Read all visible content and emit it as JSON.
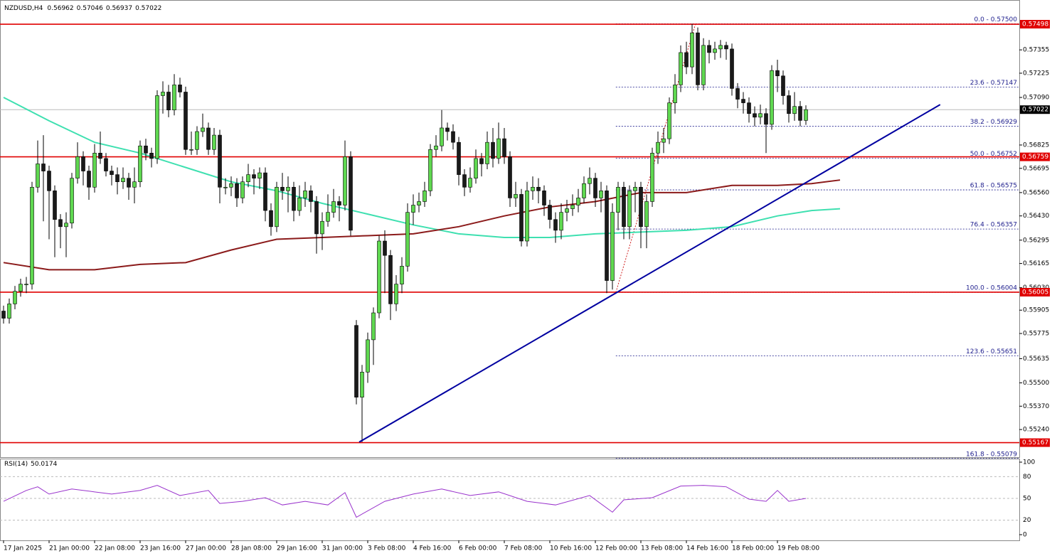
{
  "chart_data": {
    "type": "candlestick",
    "symbol": "NZDUSD,H4",
    "up_color": "#5fd850",
    "down_color": "#1a1a1a",
    "ylim": [
      0.55086,
      0.57613
    ],
    "yticks": [
      0.57355,
      0.57225,
      {
        "value": 0.5709,
        "label": "0.57090"
      },
      0.56825,
      0.56695,
      {
        "value": 0.5656,
        "label": "0.56560"
      },
      {
        "value": 0.5643,
        "label": "0.56430"
      },
      0.56295,
      0.56165,
      {
        "value": 0.5603,
        "label": "0.56030"
      },
      0.55905,
      0.55775,
      0.55635,
      {
        "value": 0.555,
        "label": "0.55500"
      },
      {
        "value": 0.5537,
        "label": "0.55370"
      },
      {
        "value": 0.5524,
        "label": "0.55240"
      }
    ],
    "xticks": [
      {
        "value": 0,
        "label": "17 Jan 2025"
      },
      {
        "value": 8,
        "label": "21 Jan 00:00"
      },
      {
        "value": 16,
        "label": "22 Jan 08:00"
      },
      {
        "value": 24,
        "label": "23 Jan 16:00"
      },
      {
        "value": 32,
        "label": "27 Jan 00:00"
      },
      {
        "value": 40,
        "label": "28 Jan 08:00"
      },
      {
        "value": 48,
        "label": "29 Jan 16:00"
      },
      {
        "value": 56,
        "label": "31 Jan 00:00"
      },
      {
        "value": 64,
        "label": "3 Feb 08:00"
      },
      {
        "value": 72,
        "label": "4 Feb 16:00"
      },
      {
        "value": 80,
        "label": "6 Feb 00:00"
      },
      {
        "value": 88,
        "label": "7 Feb 08:00"
      },
      {
        "value": 96,
        "label": "10 Feb 16:00"
      },
      {
        "value": 104,
        "label": "12 Feb 00:00"
      },
      {
        "value": 112,
        "label": "13 Feb 08:00"
      },
      {
        "value": 120,
        "label": "14 Feb 16:00"
      },
      {
        "value": 128,
        "label": "18 Feb 00:00"
      },
      {
        "value": 136,
        "label": "19 Feb 08:00"
      }
    ],
    "candles": [
      [
        0.559,
        0.5593,
        0.5583,
        0.5586
      ],
      [
        0.5586,
        0.5597,
        0.5583,
        0.5594
      ],
      [
        0.5594,
        0.5604,
        0.5591,
        0.5601
      ],
      [
        0.5601,
        0.5608,
        0.5598,
        0.5605
      ],
      [
        0.5605,
        0.5609,
        0.56,
        0.5605
      ],
      [
        0.5605,
        0.5662,
        0.5602,
        0.5659
      ],
      [
        0.5659,
        0.5685,
        0.5656,
        0.5672
      ],
      [
        0.5672,
        0.5688,
        0.564,
        0.5668
      ],
      [
        0.5668,
        0.5671,
        0.563,
        0.5657
      ],
      [
        0.5657,
        0.566,
        0.562,
        0.5641
      ],
      [
        0.5641,
        0.5644,
        0.5625,
        0.5637
      ],
      [
        0.5637,
        0.5645,
        0.562,
        0.5639
      ],
      [
        0.5639,
        0.5667,
        0.5636,
        0.5664
      ],
      [
        0.5664,
        0.5684,
        0.5661,
        0.5676
      ],
      [
        0.5676,
        0.5679,
        0.566,
        0.5668
      ],
      [
        0.5668,
        0.5671,
        0.5652,
        0.5659
      ],
      [
        0.5659,
        0.5683,
        0.5656,
        0.5678
      ],
      [
        0.5678,
        0.569,
        0.5672,
        0.5675
      ],
      [
        0.5675,
        0.5678,
        0.5665,
        0.5668
      ],
      [
        0.5668,
        0.5671,
        0.566,
        0.5666
      ],
      [
        0.5666,
        0.567,
        0.5655,
        0.5662
      ],
      [
        0.5662,
        0.567,
        0.5658,
        0.5664
      ],
      [
        0.5664,
        0.5667,
        0.5652,
        0.5659
      ],
      [
        0.5659,
        0.567,
        0.565,
        0.5662
      ],
      [
        0.5662,
        0.5685,
        0.5659,
        0.5682
      ],
      [
        0.5682,
        0.5686,
        0.5674,
        0.5678
      ],
      [
        0.5678,
        0.5681,
        0.567,
        0.5675
      ],
      [
        0.5675,
        0.5713,
        0.5672,
        0.571
      ],
      [
        0.571,
        0.5718,
        0.57,
        0.5712
      ],
      [
        0.5712,
        0.5716,
        0.5698,
        0.5702
      ],
      [
        0.5702,
        0.5722,
        0.5699,
        0.5716
      ],
      [
        0.5716,
        0.572,
        0.5709,
        0.5712
      ],
      [
        0.5712,
        0.5715,
        0.5677,
        0.568
      ],
      [
        0.568,
        0.569,
        0.5677,
        0.568
      ],
      [
        0.568,
        0.5693,
        0.5677,
        0.569
      ],
      [
        0.569,
        0.57,
        0.5687,
        0.5692
      ],
      [
        0.5692,
        0.5695,
        0.5677,
        0.568
      ],
      [
        0.568,
        0.5692,
        0.5677,
        0.5688
      ],
      [
        0.5688,
        0.5691,
        0.565,
        0.5659
      ],
      [
        0.5659,
        0.5664,
        0.5655,
        0.5659
      ],
      [
        0.5659,
        0.5665,
        0.5654,
        0.5661
      ],
      [
        0.5661,
        0.5664,
        0.5648,
        0.5653
      ],
      [
        0.5653,
        0.5665,
        0.565,
        0.5662
      ],
      [
        0.5662,
        0.5672,
        0.5659,
        0.5666
      ],
      [
        0.5666,
        0.5669,
        0.5655,
        0.5664
      ],
      [
        0.5664,
        0.567,
        0.5658,
        0.5667
      ],
      [
        0.5667,
        0.567,
        0.564,
        0.5646
      ],
      [
        0.5646,
        0.565,
        0.5632,
        0.5637
      ],
      [
        0.5637,
        0.5662,
        0.5634,
        0.5659
      ],
      [
        0.5659,
        0.5667,
        0.5652,
        0.5657
      ],
      [
        0.5657,
        0.5665,
        0.5645,
        0.5659
      ],
      [
        0.5659,
        0.5662,
        0.564,
        0.5646
      ],
      [
        0.5646,
        0.566,
        0.5643,
        0.5653
      ],
      [
        0.5653,
        0.5662,
        0.5648,
        0.5657
      ],
      [
        0.5657,
        0.566,
        0.5645,
        0.5651
      ],
      [
        0.5651,
        0.5654,
        0.5622,
        0.5633
      ],
      [
        0.5633,
        0.5645,
        0.5624,
        0.564
      ],
      [
        0.564,
        0.5655,
        0.5637,
        0.5645
      ],
      [
        0.5645,
        0.5658,
        0.5642,
        0.5651
      ],
      [
        0.5651,
        0.5654,
        0.564,
        0.5649
      ],
      [
        0.5649,
        0.5685,
        0.5646,
        0.5676
      ],
      [
        0.5676,
        0.5679,
        0.5632,
        0.5635
      ],
      [
        0.5582,
        0.5585,
        0.5538,
        0.5542
      ],
      [
        0.5542,
        0.556,
        0.5517,
        0.5556
      ],
      [
        0.5556,
        0.5578,
        0.555,
        0.5574
      ],
      [
        0.5574,
        0.5592,
        0.556,
        0.5589
      ],
      [
        0.5589,
        0.5632,
        0.5586,
        0.5629
      ],
      [
        0.5629,
        0.5635,
        0.56,
        0.5621
      ],
      [
        0.5621,
        0.5624,
        0.5585,
        0.5594
      ],
      [
        0.5594,
        0.561,
        0.559,
        0.5605
      ],
      [
        0.5605,
        0.562,
        0.56,
        0.5615
      ],
      [
        0.5615,
        0.565,
        0.5612,
        0.5645
      ],
      [
        0.5645,
        0.5655,
        0.5638,
        0.5649
      ],
      [
        0.5649,
        0.5656,
        0.5645,
        0.5651
      ],
      [
        0.5651,
        0.5662,
        0.5648,
        0.5657
      ],
      [
        0.5657,
        0.5683,
        0.5654,
        0.568
      ],
      [
        0.568,
        0.5688,
        0.5676,
        0.5682
      ],
      [
        0.5682,
        0.5702,
        0.5679,
        0.5692
      ],
      [
        0.5692,
        0.5695,
        0.5685,
        0.569
      ],
      [
        0.569,
        0.5694,
        0.568,
        0.5684
      ],
      [
        0.5684,
        0.5687,
        0.566,
        0.5666
      ],
      [
        0.5666,
        0.5669,
        0.5654,
        0.5659
      ],
      [
        0.5659,
        0.567,
        0.5656,
        0.5664
      ],
      [
        0.5664,
        0.568,
        0.5661,
        0.5675
      ],
      [
        0.5675,
        0.5678,
        0.5665,
        0.5672
      ],
      [
        0.5672,
        0.569,
        0.5669,
        0.5684
      ],
      [
        0.5684,
        0.5692,
        0.567,
        0.5675
      ],
      [
        0.5675,
        0.5695,
        0.5672,
        0.5686
      ],
      [
        0.5686,
        0.5692,
        0.5672,
        0.5676
      ],
      [
        0.5676,
        0.5679,
        0.5648,
        0.5653
      ],
      [
        0.5653,
        0.5662,
        0.5648,
        0.5655
      ],
      [
        0.5655,
        0.5658,
        0.5626,
        0.5629
      ],
      [
        0.5629,
        0.5662,
        0.5626,
        0.5657
      ],
      [
        0.5657,
        0.5665,
        0.5652,
        0.5659
      ],
      [
        0.5659,
        0.5664,
        0.565,
        0.5657
      ],
      [
        0.5657,
        0.566,
        0.5643,
        0.5649
      ],
      [
        0.5649,
        0.5652,
        0.5636,
        0.5641
      ],
      [
        0.5641,
        0.5645,
        0.5628,
        0.5635
      ],
      [
        0.5635,
        0.565,
        0.563,
        0.5645
      ],
      [
        0.5645,
        0.5652,
        0.564,
        0.5647
      ],
      [
        0.5647,
        0.5655,
        0.5643,
        0.5649
      ],
      [
        0.5649,
        0.5658,
        0.5645,
        0.5653
      ],
      [
        0.5653,
        0.5665,
        0.565,
        0.5661
      ],
      [
        0.5661,
        0.567,
        0.5655,
        0.5664
      ],
      [
        0.5664,
        0.5667,
        0.5648,
        0.5653
      ],
      [
        0.5653,
        0.5662,
        0.5645,
        0.5657
      ],
      [
        0.5657,
        0.566,
        0.56,
        0.5607
      ],
      [
        0.5607,
        0.565,
        0.5602,
        0.5645
      ],
      [
        0.5645,
        0.5662,
        0.5635,
        0.5659
      ],
      [
        0.5659,
        0.5662,
        0.563,
        0.5637
      ],
      [
        0.5637,
        0.566,
        0.563,
        0.5657
      ],
      [
        0.5657,
        0.5662,
        0.5645,
        0.5659
      ],
      [
        0.5659,
        0.5662,
        0.5625,
        0.5637
      ],
      [
        0.5637,
        0.5655,
        0.5625,
        0.5651
      ],
      [
        0.5651,
        0.5681,
        0.5648,
        0.5678
      ],
      [
        0.5678,
        0.569,
        0.5672,
        0.5684
      ],
      [
        0.5684,
        0.5692,
        0.5678,
        0.5686
      ],
      [
        0.5686,
        0.5709,
        0.5683,
        0.5706
      ],
      [
        0.5706,
        0.5722,
        0.57,
        0.5716
      ],
      [
        0.5716,
        0.5738,
        0.5712,
        0.5734
      ],
      [
        0.5734,
        0.574,
        0.5722,
        0.5726
      ],
      [
        0.5726,
        0.575,
        0.5722,
        0.5745
      ],
      [
        0.5745,
        0.5748,
        0.5713,
        0.5716
      ],
      [
        0.5716,
        0.5742,
        0.5713,
        0.5738
      ],
      [
        0.5738,
        0.5741,
        0.5728,
        0.5734
      ],
      [
        0.5734,
        0.574,
        0.573,
        0.5736
      ],
      [
        0.5736,
        0.5741,
        0.5731,
        0.5738
      ],
      [
        0.5738,
        0.574,
        0.573,
        0.5736
      ],
      [
        0.5736,
        0.5739,
        0.571,
        0.5714
      ],
      [
        0.5714,
        0.5717,
        0.5703,
        0.5708
      ],
      [
        0.5708,
        0.5712,
        0.57,
        0.5706
      ],
      [
        0.5706,
        0.5709,
        0.5695,
        0.57
      ],
      [
        0.57,
        0.5704,
        0.5693,
        0.5698
      ],
      [
        0.5698,
        0.5705,
        0.5694,
        0.57
      ],
      [
        0.57,
        0.5703,
        0.5678,
        0.5694
      ],
      [
        0.5694,
        0.5727,
        0.5691,
        0.5724
      ],
      [
        0.5724,
        0.573,
        0.5712,
        0.5721
      ],
      [
        0.5721,
        0.5724,
        0.5705,
        0.571
      ],
      [
        0.571,
        0.5713,
        0.5695,
        0.57
      ],
      [
        0.57,
        0.5712,
        0.5696,
        0.5704
      ],
      [
        0.5704,
        0.5707,
        0.5693,
        0.56962
      ],
      [
        0.56962,
        0.57046,
        0.56937,
        0.57022
      ]
    ],
    "series": [
      {
        "color": "#3ee0b0",
        "x": [
          0,
          8,
          16,
          24,
          32,
          40,
          48,
          56,
          64,
          72,
          80,
          88,
          96,
          104,
          112,
          120,
          128,
          136,
          142,
          147
        ],
        "values": [
          0.5709,
          0.5696,
          0.5684,
          0.5678,
          0.567,
          0.5662,
          0.5657,
          0.565,
          0.5644,
          0.5638,
          0.5633,
          0.5631,
          0.5631,
          0.5633,
          0.5634,
          0.5635,
          0.5637,
          0.5643,
          0.5646,
          0.5647
        ]
      },
      {
        "color": "#8b1a1a",
        "x": [
          0,
          8,
          16,
          24,
          32,
          40,
          48,
          56,
          64,
          72,
          80,
          88,
          96,
          104,
          112,
          120,
          128,
          136,
          142,
          147
        ],
        "values": [
          0.5617,
          0.5613,
          0.5613,
          0.5616,
          0.5617,
          0.5624,
          0.563,
          0.5631,
          0.5632,
          0.5633,
          0.5637,
          0.5643,
          0.5648,
          0.5651,
          0.5656,
          0.5656,
          0.566,
          0.566,
          0.5661,
          0.5663
        ]
      }
    ],
    "hlines": [
      0.57498,
      0.56759,
      0.56005,
      0.55167
    ],
    "hline_color": "#e00000",
    "trendline": {
      "color": "#0000a0",
      "x": [
        62.5,
        164.6
      ],
      "values": [
        0.5517,
        0.5705
      ]
    },
    "fib_x": [
      107.6,
      121.6
    ],
    "fib_levels": [
      {
        "value": 0.575,
        "label": "0.0 - 0.57500"
      },
      {
        "value": 0.57147,
        "label": "23.6 - 0.57147"
      },
      {
        "value": 0.56929,
        "label": "38.2 - 0.56929"
      },
      {
        "value": 0.56752,
        "label": "50.0 - 0.56752"
      },
      {
        "value": 0.56575,
        "label": "61.8 - 0.56575"
      },
      {
        "value": 0.56357,
        "label": "76.4 - 0.56357"
      },
      {
        "value": 0.56004,
        "label": "100.0 - 0.56004"
      },
      {
        "value": 0.55651,
        "label": "123.6 - 0.55651"
      },
      {
        "value": 0.55079,
        "label": "161.8 - 0.55079"
      }
    ],
    "rsi": {
      "label": "RSI(14)",
      "color": "#9932cc",
      "ylim": [
        0,
        100
      ],
      "yticks": [
        100,
        80,
        50,
        20,
        0
      ],
      "x": [
        0,
        4,
        6,
        8,
        12,
        16,
        19,
        24,
        27,
        31,
        36,
        38,
        42,
        46,
        49,
        53,
        57,
        60,
        62,
        67,
        72,
        77,
        82,
        87,
        92,
        97,
        103,
        107,
        109,
        114,
        119,
        123,
        127,
        131,
        134,
        136,
        138,
        141
      ],
      "values": [
        46,
        61,
        66,
        56,
        63,
        59,
        56,
        61,
        68,
        54,
        61,
        43,
        46,
        51,
        41,
        46,
        41,
        58,
        24,
        46,
        56,
        63,
        54,
        59,
        46,
        41,
        54,
        31,
        48,
        51,
        67,
        68,
        66,
        49,
        46,
        61,
        46,
        50.0174
      ]
    }
  }
}
